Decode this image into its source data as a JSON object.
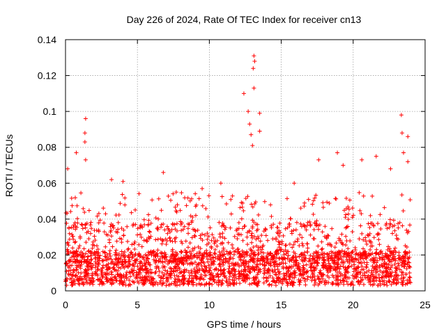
{
  "chart_data": {
    "type": "scatter",
    "title": "Day 226 of 2024, Rate Of TEC Index for receiver cn13",
    "xlabel": "GPS time / hours",
    "ylabel": "ROTI / TECUs",
    "xlim": [
      0,
      25
    ],
    "ylim": [
      0,
      0.14
    ],
    "xticks": [
      0,
      5,
      10,
      15,
      20,
      25
    ],
    "xtick_labels": [
      "0",
      "5",
      "10",
      "15",
      "20",
      "25"
    ],
    "yticks": [
      0,
      0.02,
      0.04,
      0.06,
      0.08,
      0.1,
      0.12,
      0.14
    ],
    "ytick_labels": [
      "0",
      "0.02",
      "0.04",
      "0.06",
      "0.08",
      "0.1",
      "0.12",
      "0.14"
    ],
    "grid": true,
    "marker": "+",
    "color": "#ff0000",
    "data_span_hours": [
      0,
      24
    ],
    "baseline_range": [
      0.003,
      0.03
    ],
    "peaks": [
      {
        "x": 0.15,
        "y": 0.068
      },
      {
        "x": 0.75,
        "y": 0.077
      },
      {
        "x": 1.4,
        "y": 0.096
      },
      {
        "x": 1.35,
        "y": 0.088
      },
      {
        "x": 1.35,
        "y": 0.083
      },
      {
        "x": 1.4,
        "y": 0.073
      },
      {
        "x": 3.2,
        "y": 0.062
      },
      {
        "x": 4.0,
        "y": 0.061
      },
      {
        "x": 6.8,
        "y": 0.066
      },
      {
        "x": 7.7,
        "y": 0.055
      },
      {
        "x": 9.5,
        "y": 0.057
      },
      {
        "x": 10.8,
        "y": 0.06
      },
      {
        "x": 12.4,
        "y": 0.11
      },
      {
        "x": 12.7,
        "y": 0.1
      },
      {
        "x": 12.8,
        "y": 0.093
      },
      {
        "x": 12.9,
        "y": 0.087
      },
      {
        "x": 13.0,
        "y": 0.081
      },
      {
        "x": 13.05,
        "y": 0.124
      },
      {
        "x": 13.1,
        "y": 0.131
      },
      {
        "x": 13.15,
        "y": 0.128
      },
      {
        "x": 13.1,
        "y": 0.113
      },
      {
        "x": 13.5,
        "y": 0.099
      },
      {
        "x": 13.5,
        "y": 0.089
      },
      {
        "x": 15.9,
        "y": 0.06
      },
      {
        "x": 17.6,
        "y": 0.073
      },
      {
        "x": 18.9,
        "y": 0.077
      },
      {
        "x": 19.3,
        "y": 0.07
      },
      {
        "x": 20.6,
        "y": 0.073
      },
      {
        "x": 21.6,
        "y": 0.075
      },
      {
        "x": 22.6,
        "y": 0.068
      },
      {
        "x": 23.35,
        "y": 0.098
      },
      {
        "x": 23.4,
        "y": 0.088
      },
      {
        "x": 23.5,
        "y": 0.077
      },
      {
        "x": 23.8,
        "y": 0.086
      },
      {
        "x": 23.8,
        "y": 0.072
      }
    ]
  }
}
